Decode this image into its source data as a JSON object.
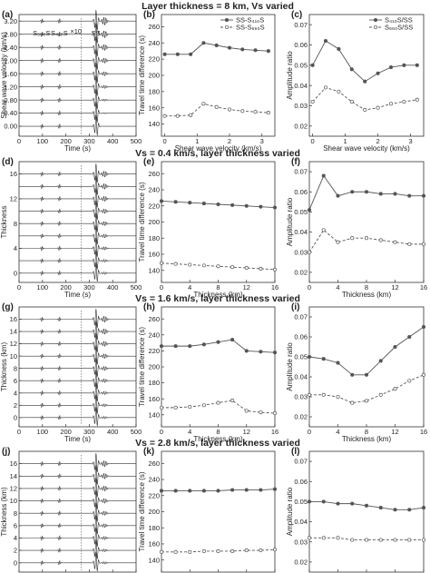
{
  "chart_data": [
    {
      "panel": "(a)",
      "type": "waveform",
      "title": "Layer thickness = 8 km, Vs varied",
      "xlabel": "Time (s)",
      "ylabel": "Shear wave velocity (km/s)",
      "xlim": [
        0,
        500
      ],
      "xticks": [
        0,
        100,
        200,
        300,
        400,
        500
      ],
      "ylim": [
        -0.3,
        3.4
      ],
      "yticks": [
        0,
        0.4,
        0.8,
        1.2,
        1.6,
        2.0,
        2.4,
        2.8,
        3.2
      ],
      "trace_levels": [
        0,
        0.4,
        0.8,
        1.2,
        1.6,
        2.0,
        2.4,
        2.8,
        3.2
      ],
      "annotations": [
        "S₆₆₀S",
        "S₄₁₀S",
        "×10",
        "SS"
      ]
    },
    {
      "panel": "(b)",
      "type": "line",
      "xlabel": "Shear wave velocity (km/s)",
      "ylabel": "Travel time difference (s)",
      "xlim": [
        -0.1,
        3.4
      ],
      "xticks": [
        0,
        1,
        2,
        3
      ],
      "ylim": [
        125,
        275
      ],
      "yticks": [
        140,
        160,
        180,
        200,
        220,
        240,
        260
      ],
      "legend": "top-right",
      "series": [
        {
          "name": "SS-S₄₁₀S",
          "style": "solid",
          "x": [
            0,
            0.4,
            0.8,
            1.2,
            1.6,
            2.0,
            2.4,
            2.8,
            3.2
          ],
          "y": [
            226,
            226,
            226,
            240,
            237,
            234,
            232,
            231,
            230
          ]
        },
        {
          "name": "SS-S₆₆₀S",
          "style": "dashed",
          "x": [
            0,
            0.4,
            0.8,
            1.2,
            1.6,
            2.0,
            2.4,
            2.8,
            3.2
          ],
          "y": [
            150,
            150,
            151,
            165,
            161,
            158,
            156,
            155,
            154
          ]
        }
      ]
    },
    {
      "panel": "(c)",
      "type": "line",
      "xlabel": "Shear wave velocity (km/s)",
      "ylabel": "Amplitude ratio",
      "xlim": [
        -0.1,
        3.4
      ],
      "xticks": [
        0,
        1,
        2,
        3
      ],
      "ylim": [
        0.015,
        0.075
      ],
      "yticks": [
        0.02,
        0.03,
        0.04,
        0.05,
        0.06,
        0.07
      ],
      "legend": "top-right",
      "series": [
        {
          "name": "S₄₁₀S/SS",
          "style": "solid",
          "x": [
            0,
            0.4,
            0.8,
            1.2,
            1.6,
            2.0,
            2.4,
            2.8,
            3.2
          ],
          "y": [
            0.05,
            0.062,
            0.058,
            0.048,
            0.042,
            0.046,
            0.049,
            0.05,
            0.05
          ]
        },
        {
          "name": "S₆₆₀S/SS",
          "style": "dashed",
          "x": [
            0,
            0.4,
            0.8,
            1.2,
            1.6,
            2.0,
            2.4,
            2.8,
            3.2
          ],
          "y": [
            0.032,
            0.039,
            0.037,
            0.032,
            0.028,
            0.029,
            0.031,
            0.032,
            0.033
          ]
        }
      ]
    },
    {
      "panel": "(d)",
      "type": "waveform",
      "title": "Vs = 0.4 km/s, layer thickness varied",
      "xlabel": "Time (s)",
      "ylabel": "Thickness",
      "xlim": [
        0,
        500
      ],
      "xticks": [
        0,
        100,
        200,
        300,
        400,
        500
      ],
      "ylim": [
        -1.5,
        18
      ],
      "yticks": [
        0,
        4,
        8,
        12,
        16
      ],
      "trace_levels": [
        0,
        2,
        4,
        6,
        8,
        10,
        12,
        14,
        16
      ]
    },
    {
      "panel": "(e)",
      "type": "line",
      "xlabel": "Thickness (km)",
      "ylabel": "Travel time difference (s)",
      "xlim": [
        0,
        16
      ],
      "xticks": [
        0,
        4,
        8,
        12,
        16
      ],
      "ylim": [
        125,
        275
      ],
      "yticks": [
        140,
        160,
        180,
        200,
        220,
        240,
        260
      ],
      "series": [
        {
          "style": "solid",
          "x": [
            0,
            2,
            4,
            6,
            8,
            10,
            12,
            14,
            16
          ],
          "y": [
            226,
            225,
            224,
            223,
            222,
            221,
            220,
            219,
            218
          ]
        },
        {
          "style": "dashed",
          "x": [
            0,
            2,
            4,
            6,
            8,
            10,
            12,
            14,
            16
          ],
          "y": [
            149,
            148,
            147,
            146,
            145,
            144,
            143,
            142,
            141
          ]
        }
      ]
    },
    {
      "panel": "(f)",
      "type": "line",
      "xlabel": "Thickness (km)",
      "ylabel": "Amplitude ratio",
      "xlim": [
        0,
        16
      ],
      "xticks": [
        0,
        4,
        8,
        12,
        16
      ],
      "ylim": [
        0.015,
        0.075
      ],
      "yticks": [
        0.02,
        0.03,
        0.04,
        0.05,
        0.06,
        0.07
      ],
      "series": [
        {
          "style": "solid",
          "x": [
            0,
            2,
            4,
            6,
            8,
            10,
            12,
            14,
            16
          ],
          "y": [
            0.051,
            0.068,
            0.058,
            0.06,
            0.06,
            0.059,
            0.059,
            0.058,
            0.058
          ]
        },
        {
          "style": "dashed",
          "x": [
            0,
            2,
            4,
            6,
            8,
            10,
            12,
            14,
            16
          ],
          "y": [
            0.03,
            0.041,
            0.035,
            0.037,
            0.037,
            0.036,
            0.035,
            0.034,
            0.034
          ]
        }
      ]
    },
    {
      "panel": "(g)",
      "type": "waveform",
      "title": "Vs = 1.6 km/s, layer thickness varied",
      "xlabel": "Time (s)",
      "ylabel": "Thickness (km)",
      "xlim": [
        0,
        500
      ],
      "xticks": [
        0,
        100,
        200,
        300,
        400,
        500
      ],
      "ylim": [
        -1.5,
        18
      ],
      "yticks": [
        0,
        2,
        4,
        6,
        8,
        10,
        12,
        14,
        16
      ],
      "trace_levels": [
        0,
        2,
        4,
        6,
        8,
        10,
        12,
        14,
        16
      ]
    },
    {
      "panel": "(h)",
      "type": "line",
      "xlabel": "Thickness (km)",
      "ylabel": "Travel time difference (s)",
      "xlim": [
        0,
        16
      ],
      "xticks": [
        0,
        4,
        8,
        12,
        16
      ],
      "ylim": [
        125,
        275
      ],
      "yticks": [
        140,
        160,
        180,
        200,
        220,
        240,
        260
      ],
      "series": [
        {
          "style": "solid",
          "x": [
            0,
            2,
            4,
            6,
            8,
            10,
            12,
            14,
            16
          ],
          "y": [
            226,
            226,
            226,
            228,
            231,
            234,
            220,
            219,
            218
          ]
        },
        {
          "style": "dashed",
          "x": [
            0,
            2,
            4,
            6,
            8,
            10,
            12,
            14,
            16
          ],
          "y": [
            149,
            149,
            150,
            152,
            155,
            158,
            145,
            143,
            142
          ]
        }
      ]
    },
    {
      "panel": "(i)",
      "type": "line",
      "xlabel": "Thickness (km)",
      "ylabel": "Amplitude ratio",
      "xlim": [
        0,
        16
      ],
      "xticks": [
        0,
        4,
        8,
        12,
        16
      ],
      "ylim": [
        0.015,
        0.075
      ],
      "yticks": [
        0.02,
        0.03,
        0.04,
        0.05,
        0.06,
        0.07
      ],
      "series": [
        {
          "style": "solid",
          "x": [
            0,
            2,
            4,
            6,
            8,
            10,
            12,
            14,
            16
          ],
          "y": [
            0.05,
            0.049,
            0.047,
            0.041,
            0.041,
            0.048,
            0.055,
            0.06,
            0.065
          ]
        },
        {
          "style": "dashed",
          "x": [
            0,
            2,
            4,
            6,
            8,
            10,
            12,
            14,
            16
          ],
          "y": [
            0.031,
            0.031,
            0.03,
            0.027,
            0.028,
            0.031,
            0.034,
            0.038,
            0.041
          ]
        }
      ]
    },
    {
      "panel": "(j)",
      "type": "waveform",
      "title": "Vs = 2.8 km/s, layer thickness varied",
      "xlabel": "Time (s)",
      "ylabel": "Thickness (km)",
      "xlim": [
        0,
        500
      ],
      "xticks": [
        0,
        100,
        200,
        300,
        400,
        500
      ],
      "ylim": [
        -1.5,
        18
      ],
      "yticks": [
        0,
        2,
        4,
        6,
        8,
        10,
        12,
        14,
        16
      ],
      "trace_levels": [
        0,
        2,
        4,
        6,
        8,
        10,
        12,
        14,
        16
      ]
    },
    {
      "panel": "(k)",
      "type": "line",
      "xlabel": "Thickness (km)",
      "ylabel": "Travel time difference (s)",
      "xlim": [
        0,
        16
      ],
      "xticks": [
        0,
        4,
        8,
        12,
        16
      ],
      "ylim": [
        125,
        275
      ],
      "yticks": [
        140,
        160,
        180,
        200,
        220,
        240,
        260
      ],
      "series": [
        {
          "style": "solid",
          "x": [
            0,
            2,
            4,
            6,
            8,
            10,
            12,
            14,
            16
          ],
          "y": [
            226,
            226,
            226,
            226,
            226,
            227,
            227,
            227,
            228
          ]
        },
        {
          "style": "dashed",
          "x": [
            0,
            2,
            4,
            6,
            8,
            10,
            12,
            14,
            16
          ],
          "y": [
            150,
            150,
            150,
            151,
            151,
            151,
            152,
            152,
            153
          ]
        }
      ]
    },
    {
      "panel": "(l)",
      "type": "line",
      "xlabel": "Thickness (km)",
      "ylabel": "Amplitude ratio",
      "xlim": [
        0,
        16
      ],
      "xticks": [
        0,
        4,
        8,
        12,
        16
      ],
      "ylim": [
        0.015,
        0.075
      ],
      "yticks": [
        0.02,
        0.03,
        0.04,
        0.05,
        0.06,
        0.07
      ],
      "series": [
        {
          "style": "solid",
          "x": [
            0,
            2,
            4,
            6,
            8,
            10,
            12,
            14,
            16
          ],
          "y": [
            0.05,
            0.05,
            0.049,
            0.049,
            0.048,
            0.047,
            0.046,
            0.046,
            0.047
          ]
        },
        {
          "style": "dashed",
          "x": [
            0,
            2,
            4,
            6,
            8,
            10,
            12,
            14,
            16
          ],
          "y": [
            0.032,
            0.032,
            0.032,
            0.031,
            0.031,
            0.031,
            0.031,
            0.031,
            0.031
          ]
        }
      ]
    }
  ]
}
